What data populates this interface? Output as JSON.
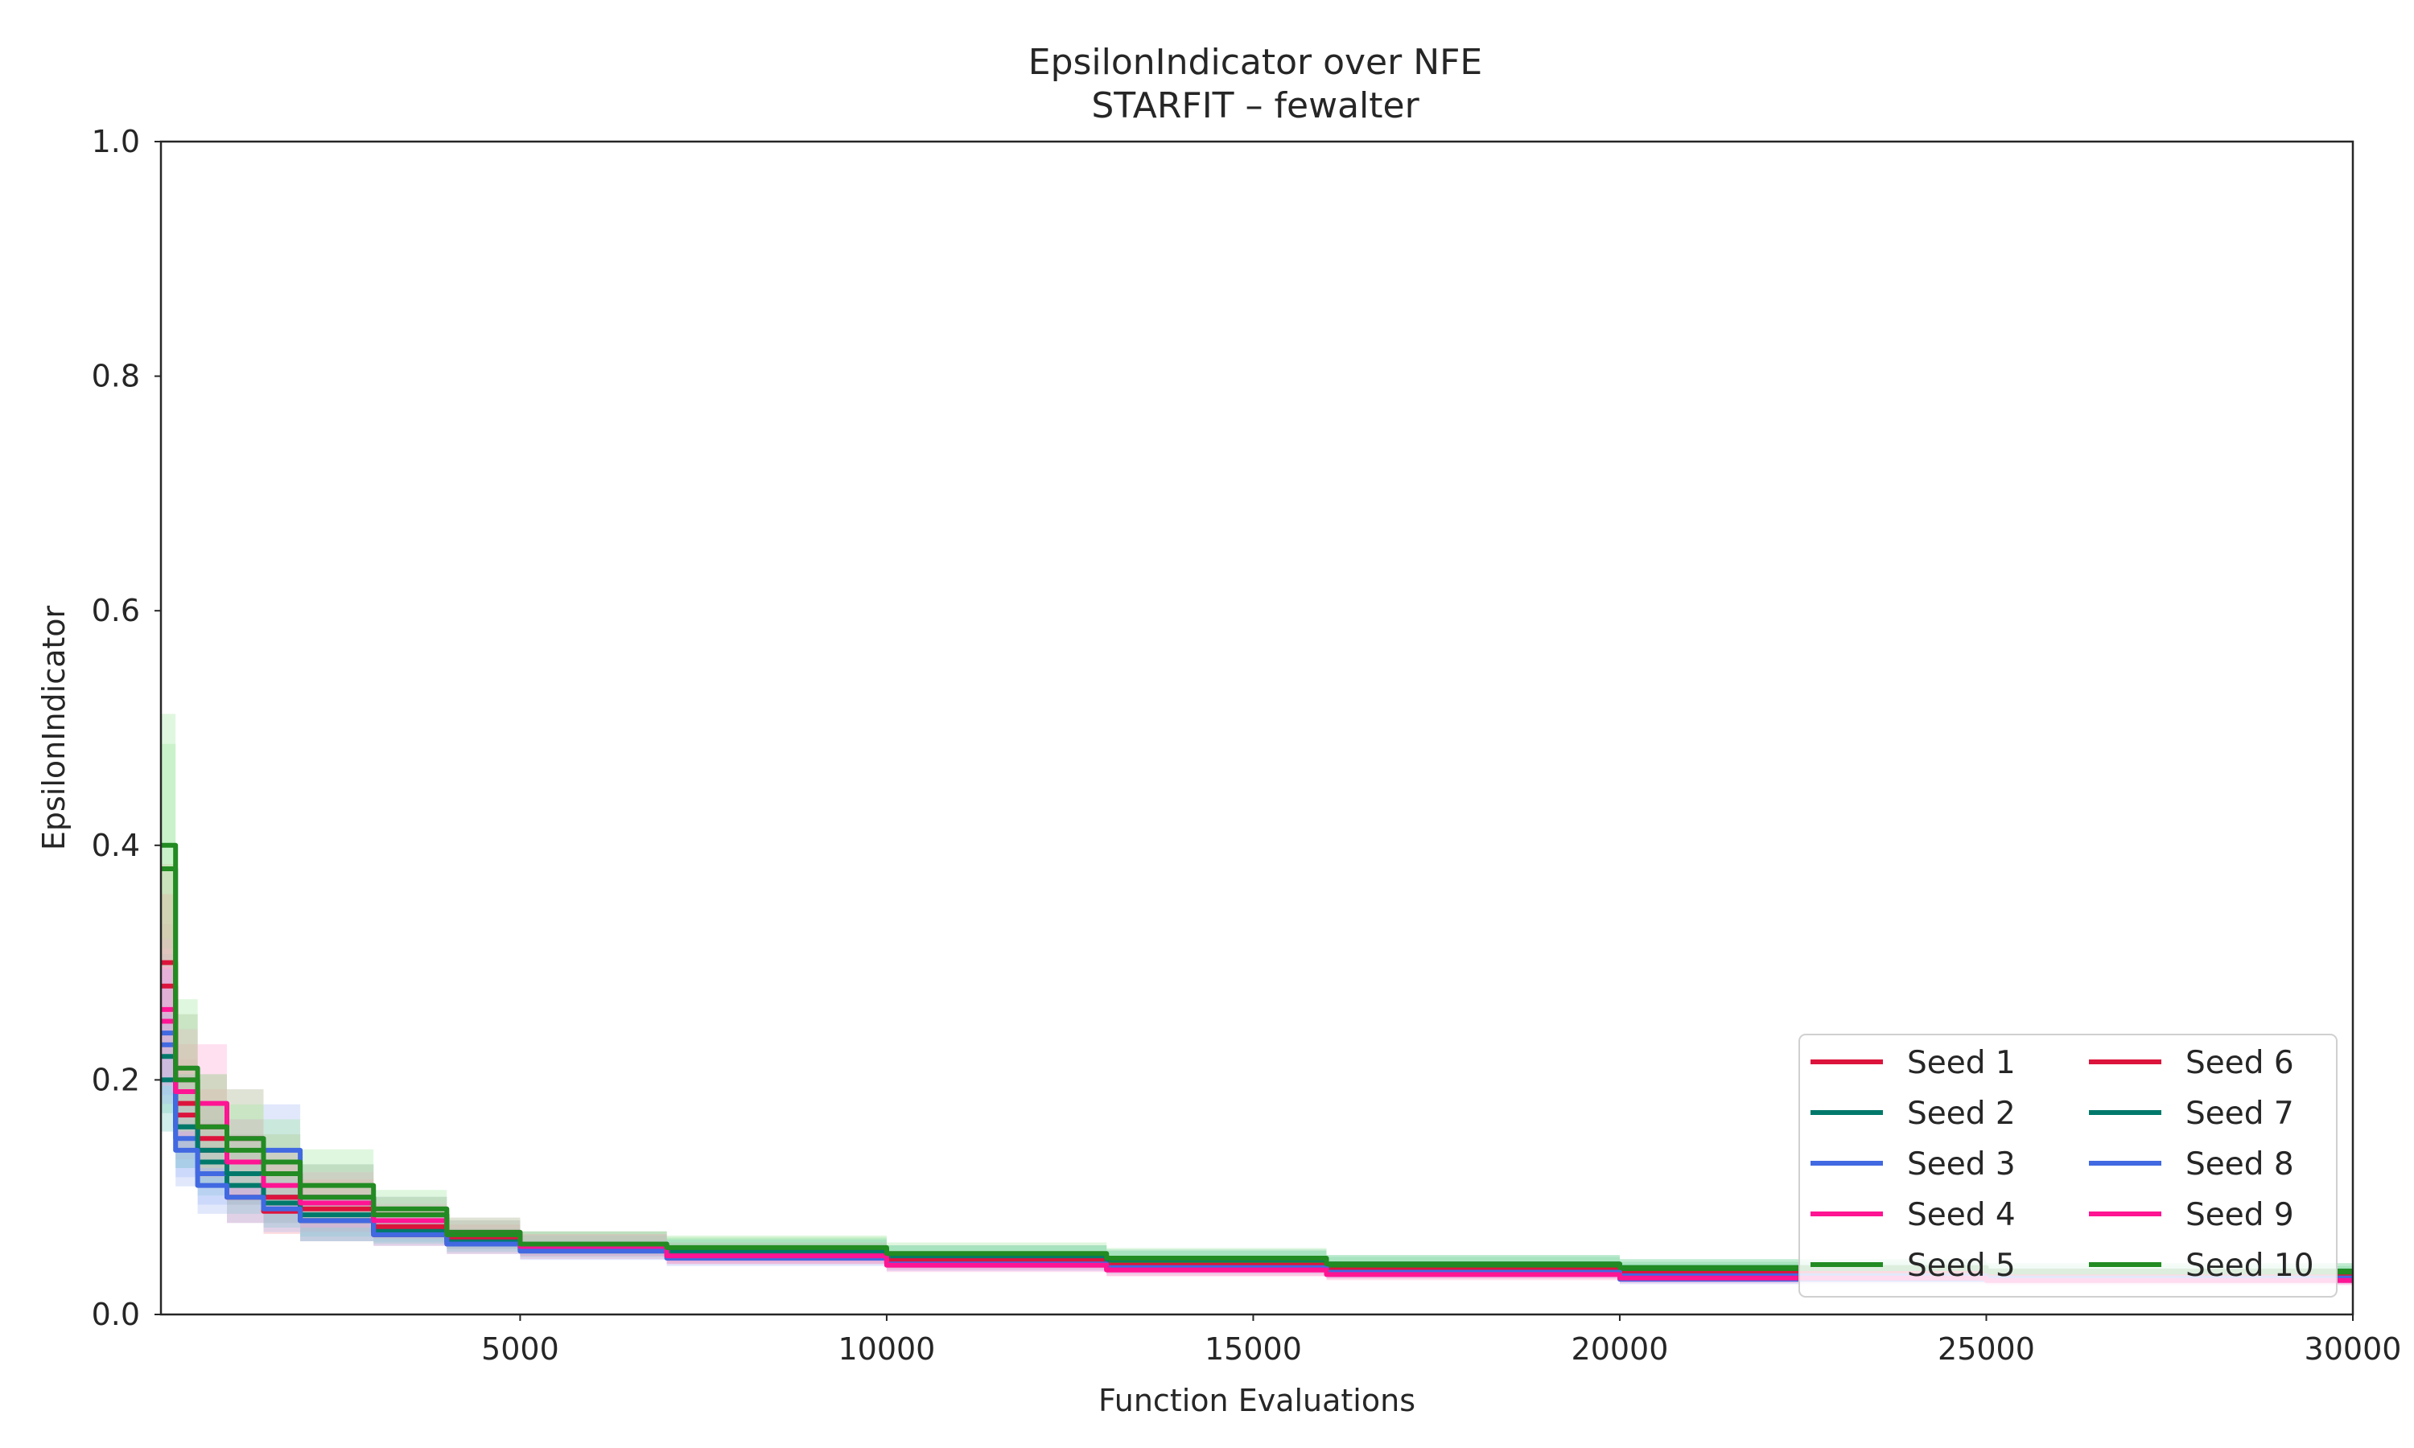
{
  "chart_data": {
    "type": "line",
    "title": "EpsilonIndicator over NFE",
    "subtitle": "STARFIT – fewalter",
    "xlabel": "Function Evaluations",
    "ylabel": "EpsilonIndicator",
    "xlim": [
      100,
      30000
    ],
    "ylim": [
      0.0,
      1.0
    ],
    "x_ticks": [
      5000,
      10000,
      15000,
      20000,
      25000,
      30000
    ],
    "y_ticks": [
      0.0,
      0.2,
      0.4,
      0.6,
      0.8,
      1.0
    ],
    "x_tick_labels": [
      "5000",
      "10000",
      "15000",
      "20000",
      "25000",
      "30000"
    ],
    "y_tick_labels": [
      "0.0",
      "0.2",
      "0.4",
      "0.6",
      "0.8",
      "1.0"
    ],
    "grid": false,
    "legend_position": "bottom-right",
    "legend_columns": 2,
    "band": "shaded range around each series",
    "series": [
      {
        "name": "Seed 1",
        "color": "#dc143c",
        "band_color": "#ff9aa2",
        "x": [
          100,
          300,
          600,
          1000,
          1500,
          2000,
          3000,
          4000,
          5000,
          7000,
          10000,
          13000,
          16000,
          20000,
          25000,
          30000
        ],
        "y": [
          0.3,
          0.17,
          0.14,
          0.1,
          0.088,
          0.08,
          0.068,
          0.06,
          0.055,
          0.05,
          0.045,
          0.041,
          0.038,
          0.035,
          0.032,
          0.03
        ]
      },
      {
        "name": "Seed 2",
        "color": "#00796b",
        "band_color": "#7fcdc4",
        "x": [
          100,
          300,
          600,
          1000,
          1500,
          2000,
          3000,
          4000,
          5000,
          7000,
          10000,
          13000,
          16000,
          20000,
          25000,
          30000
        ],
        "y": [
          0.22,
          0.16,
          0.13,
          0.11,
          0.1,
          0.085,
          0.072,
          0.065,
          0.06,
          0.055,
          0.05,
          0.046,
          0.042,
          0.038,
          0.035,
          0.033
        ]
      },
      {
        "name": "Seed 3",
        "color": "#4169e1",
        "band_color": "#a9bdf5",
        "x": [
          100,
          300,
          600,
          1000,
          1500,
          2000,
          3000,
          4000,
          5000,
          7000,
          10000,
          13000,
          16000,
          20000,
          25000,
          30000
        ],
        "y": [
          0.24,
          0.15,
          0.12,
          0.13,
          0.14,
          0.1,
          0.085,
          0.068,
          0.058,
          0.052,
          0.046,
          0.042,
          0.037,
          0.03,
          0.03,
          0.03
        ]
      },
      {
        "name": "Seed 4",
        "color": "#ff1493",
        "band_color": "#ffa6d4",
        "x": [
          100,
          300,
          600,
          1000,
          1500,
          2000,
          3000,
          4000,
          5000,
          7000,
          10000,
          13000,
          16000,
          20000,
          25000,
          30000
        ],
        "y": [
          0.26,
          0.2,
          0.18,
          0.15,
          0.12,
          0.1,
          0.085,
          0.07,
          0.06,
          0.05,
          0.044,
          0.038,
          0.035,
          0.032,
          0.03,
          0.03
        ]
      },
      {
        "name": "Seed 5",
        "color": "#228b22",
        "band_color": "#a4e8a4",
        "x": [
          100,
          300,
          600,
          1000,
          1500,
          2000,
          3000,
          4000,
          5000,
          7000,
          10000,
          13000,
          16000,
          20000,
          25000,
          30000
        ],
        "y": [
          0.4,
          0.21,
          0.16,
          0.15,
          0.13,
          0.11,
          0.09,
          0.07,
          0.06,
          0.056,
          0.05,
          0.046,
          0.041,
          0.038,
          0.035,
          0.034
        ]
      },
      {
        "name": "Seed 6",
        "color": "#dc143c",
        "band_color": "#ff9aa2",
        "x": [
          100,
          300,
          600,
          1000,
          1500,
          2000,
          3000,
          4000,
          5000,
          7000,
          10000,
          13000,
          16000,
          20000,
          25000,
          30000
        ],
        "y": [
          0.28,
          0.18,
          0.15,
          0.12,
          0.1,
          0.09,
          0.075,
          0.065,
          0.058,
          0.052,
          0.046,
          0.042,
          0.038,
          0.035,
          0.032,
          0.031
        ]
      },
      {
        "name": "Seed 7",
        "color": "#00796b",
        "band_color": "#7fcdc4",
        "x": [
          100,
          300,
          600,
          1000,
          1500,
          2000,
          3000,
          4000,
          5000,
          7000,
          10000,
          13000,
          16000,
          20000,
          25000,
          30000
        ],
        "y": [
          0.2,
          0.16,
          0.14,
          0.12,
          0.095,
          0.08,
          0.07,
          0.062,
          0.057,
          0.054,
          0.05,
          0.047,
          0.043,
          0.04,
          0.037,
          0.035
        ]
      },
      {
        "name": "Seed 8",
        "color": "#4169e1",
        "band_color": "#a9bdf5",
        "x": [
          100,
          300,
          600,
          1000,
          1500,
          2000,
          3000,
          4000,
          5000,
          7000,
          10000,
          13000,
          16000,
          20000,
          25000,
          30000
        ],
        "y": [
          0.23,
          0.14,
          0.11,
          0.1,
          0.09,
          0.08,
          0.068,
          0.06,
          0.054,
          0.048,
          0.043,
          0.04,
          0.036,
          0.033,
          0.031,
          0.03
        ]
      },
      {
        "name": "Seed 9",
        "color": "#ff1493",
        "band_color": "#ffa6d4",
        "x": [
          100,
          300,
          600,
          1000,
          1500,
          2000,
          3000,
          4000,
          5000,
          7000,
          10000,
          13000,
          16000,
          20000,
          25000,
          30000
        ],
        "y": [
          0.25,
          0.19,
          0.16,
          0.13,
          0.11,
          0.095,
          0.08,
          0.068,
          0.058,
          0.05,
          0.042,
          0.038,
          0.034,
          0.031,
          0.029,
          0.028
        ]
      },
      {
        "name": "Seed 10",
        "color": "#228b22",
        "band_color": "#a4e8a4",
        "x": [
          100,
          300,
          600,
          1000,
          1500,
          2000,
          3000,
          4000,
          5000,
          7000,
          10000,
          13000,
          16000,
          20000,
          25000,
          30000
        ],
        "y": [
          0.38,
          0.2,
          0.16,
          0.14,
          0.12,
          0.1,
          0.085,
          0.068,
          0.06,
          0.057,
          0.052,
          0.048,
          0.043,
          0.04,
          0.037,
          0.035
        ]
      }
    ]
  }
}
